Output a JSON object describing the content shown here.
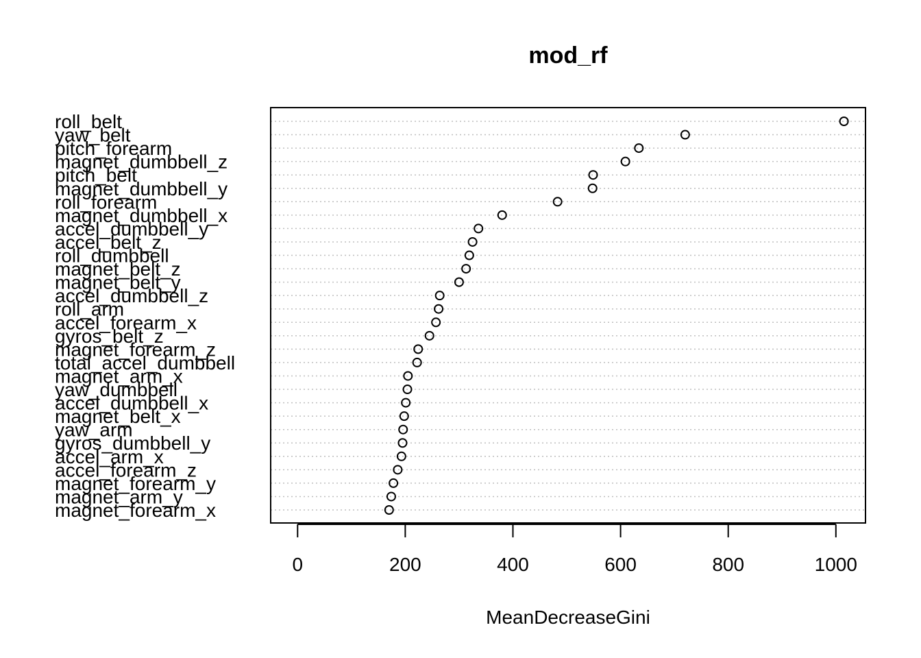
{
  "chart_data": {
    "type": "scatter",
    "title": "mod_rf",
    "xlabel": "MeanDecreaseGini",
    "ylabel": "",
    "xlim": [
      -50,
      1055
    ],
    "xticks": [
      0,
      200,
      400,
      600,
      800,
      1000
    ],
    "grid": "horizontal dotted guide per variable",
    "legend": "none",
    "point_style": "open circle",
    "colors": {
      "points": "#000000",
      "grid": "#bebebe",
      "frame": "#000000"
    },
    "categories": [
      "roll_belt",
      "yaw_belt",
      "pitch_forearm",
      "magnet_dumbbell_z",
      "pitch_belt",
      "magnet_dumbbell_y",
      "roll_forearm",
      "magnet_dumbbell_x",
      "accel_dumbbell_y",
      "accel_belt_z",
      "roll_dumbbell",
      "magnet_belt_z",
      "magnet_belt_y",
      "accel_dumbbell_z",
      "roll_arm",
      "accel_forearm_x",
      "gyros_belt_z",
      "magnet_forearm_z",
      "total_accel_dumbbell",
      "magnet_arm_x",
      "yaw_dumbbell",
      "accel_dumbbell_x",
      "magnet_belt_x",
      "yaw_arm",
      "gyros_dumbbell_y",
      "accel_arm_x",
      "accel_forearm_z",
      "magnet_forearm_y",
      "magnet_arm_y",
      "magnet_forearm_x"
    ],
    "values": [
      1015,
      720,
      634,
      609,
      549,
      548,
      483,
      380,
      336,
      325,
      319,
      313,
      300,
      264,
      262,
      257,
      245,
      224,
      222,
      205,
      204,
      201,
      198,
      196,
      195,
      193,
      186,
      178,
      174,
      170
    ]
  }
}
